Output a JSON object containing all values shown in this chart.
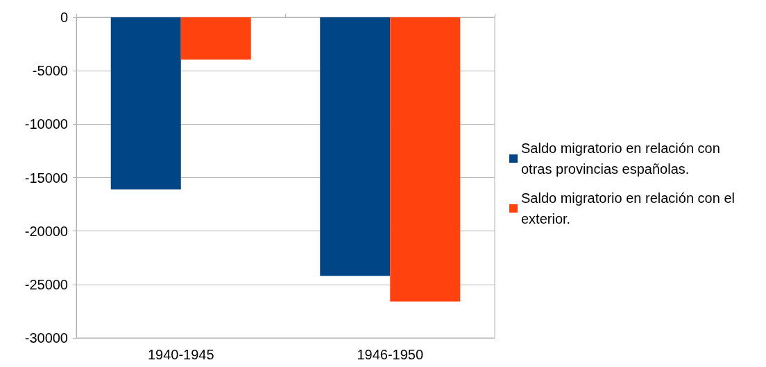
{
  "chart_data": {
    "type": "bar",
    "categories": [
      "1940-1945",
      "1946-1950"
    ],
    "series": [
      {
        "name": "Saldo migratorio en relación con otras provincias españolas.",
        "color": "#004586",
        "values": [
          -16100,
          -24200
        ]
      },
      {
        "name": "Saldo migratorio en relación con el exterior.",
        "color": "#ff420e",
        "values": [
          -3950,
          -26600
        ]
      }
    ],
    "ylim": [
      -30000,
      0
    ],
    "yticks": [
      -30000,
      -25000,
      -20000,
      -15000,
      -10000,
      -5000,
      0
    ],
    "grid": "y",
    "legend": "right"
  }
}
